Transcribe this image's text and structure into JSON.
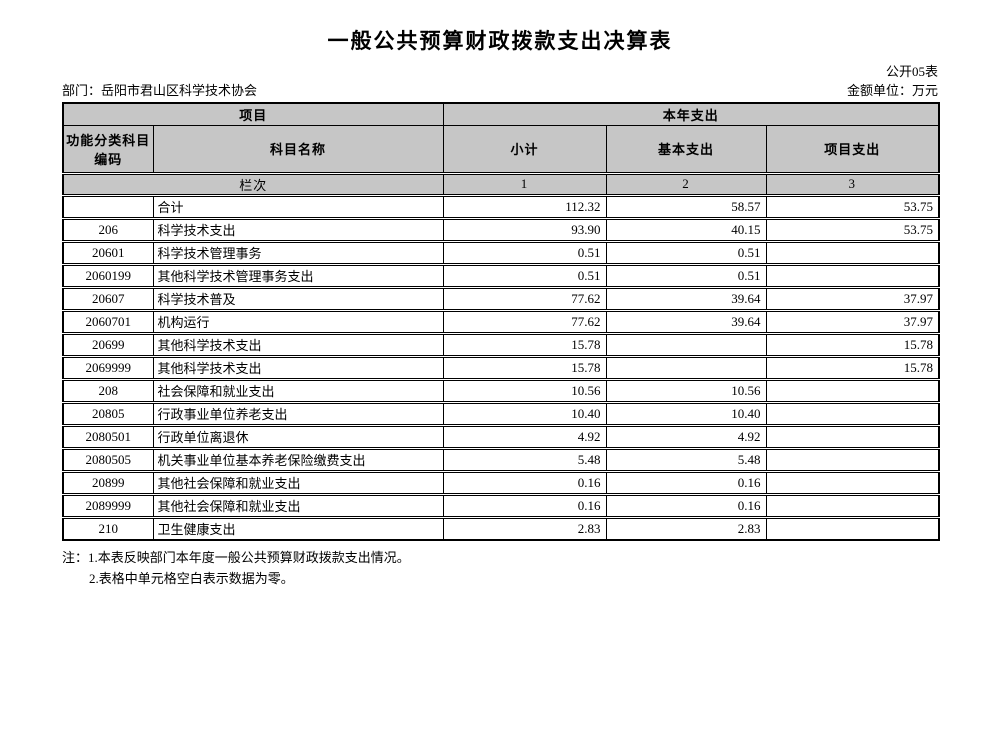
{
  "page": {
    "title": "一般公共预算财政拨款支出决算表",
    "form_code": "公开05表",
    "department": "部门：岳阳市君山区科学技术协会",
    "unit": "金额单位：万元"
  },
  "table": {
    "header": {
      "group_project": "项目",
      "group_year": "本年支出",
      "col_code": "功能分类科目编码",
      "col_name": "科目名称",
      "col_subtotal": "小计",
      "col_basic": "基本支出",
      "col_project": "项目支出",
      "lane_label": "栏次",
      "lane_numbers": [
        "1",
        "2",
        "3"
      ]
    },
    "rows": [
      {
        "code": "",
        "name": "合计",
        "subtotal": "112.32",
        "basic": "58.57",
        "project": "53.75"
      },
      {
        "code": "206",
        "name": "科学技术支出",
        "subtotal": "93.90",
        "basic": "40.15",
        "project": "53.75"
      },
      {
        "code": "20601",
        "name": "科学技术管理事务",
        "subtotal": "0.51",
        "basic": "0.51",
        "project": ""
      },
      {
        "code": "2060199",
        "name": "其他科学技术管理事务支出",
        "subtotal": "0.51",
        "basic": "0.51",
        "project": ""
      },
      {
        "code": "20607",
        "name": "科学技术普及",
        "subtotal": "77.62",
        "basic": "39.64",
        "project": "37.97"
      },
      {
        "code": "2060701",
        "name": "机构运行",
        "subtotal": "77.62",
        "basic": "39.64",
        "project": "37.97"
      },
      {
        "code": "20699",
        "name": "其他科学技术支出",
        "subtotal": "15.78",
        "basic": "",
        "project": "15.78"
      },
      {
        "code": "2069999",
        "name": "其他科学技术支出",
        "subtotal": "15.78",
        "basic": "",
        "project": "15.78"
      },
      {
        "code": "208",
        "name": "社会保障和就业支出",
        "subtotal": "10.56",
        "basic": "10.56",
        "project": ""
      },
      {
        "code": "20805",
        "name": "行政事业单位养老支出",
        "subtotal": "10.40",
        "basic": "10.40",
        "project": ""
      },
      {
        "code": "2080501",
        "name": "行政单位离退休",
        "subtotal": "4.92",
        "basic": "4.92",
        "project": ""
      },
      {
        "code": "2080505",
        "name": "机关事业单位基本养老保险缴费支出",
        "subtotal": "5.48",
        "basic": "5.48",
        "project": ""
      },
      {
        "code": "20899",
        "name": "其他社会保障和就业支出",
        "subtotal": "0.16",
        "basic": "0.16",
        "project": ""
      },
      {
        "code": "2089999",
        "name": "其他社会保障和就业支出",
        "subtotal": "0.16",
        "basic": "0.16",
        "project": ""
      },
      {
        "code": "210",
        "name": "卫生健康支出",
        "subtotal": "2.83",
        "basic": "2.83",
        "project": ""
      }
    ]
  },
  "notes": {
    "line1": "注：1.本表反映部门本年度一般公共预算财政拨款支出情况。",
    "line2": "2.表格中单元格空白表示数据为零。"
  },
  "colors": {
    "header_bg": "#c6c6c6",
    "border": "#000000"
  }
}
